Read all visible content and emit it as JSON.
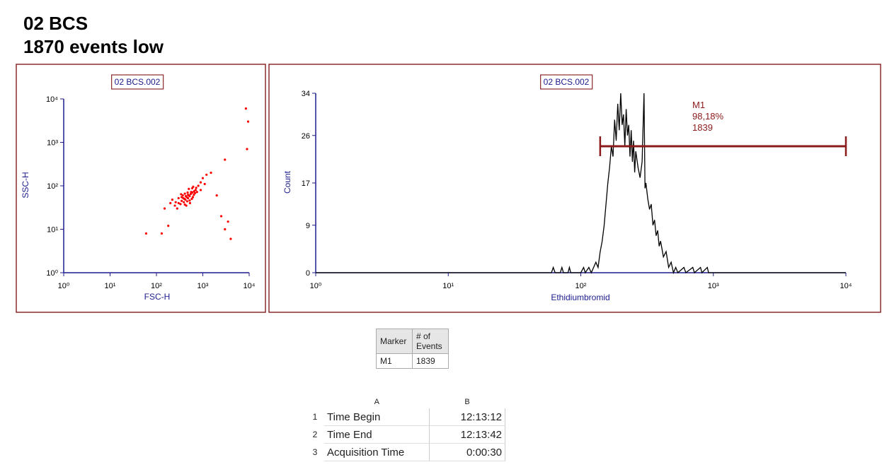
{
  "header": {
    "title": "02 BCS",
    "subtitle": "1870 events low"
  },
  "chart_data": [
    {
      "type": "scatter",
      "title": "02 BCS.002",
      "x_label": "FSC-H",
      "y_label": "SSC-H",
      "x": [
        450,
        500,
        400,
        350,
        600,
        550,
        300,
        700,
        420,
        480,
        380,
        520,
        650,
        330,
        460,
        560,
        410,
        390,
        610,
        720,
        800,
        250,
        280,
        900,
        1000,
        1200,
        440,
        500,
        370,
        640,
        580,
        430,
        470,
        520,
        350,
        300,
        680,
        750,
        260,
        200,
        900,
        1100,
        1500,
        220,
        480,
        530,
        410,
        590,
        620,
        340,
        60,
        130,
        180,
        2500,
        3000,
        4000,
        3500,
        9000,
        9500,
        8500,
        3000,
        150,
        2000
      ],
      "y": [
        55,
        60,
        50,
        45,
        70,
        65,
        40,
        80,
        48,
        62,
        52,
        58,
        75,
        38,
        44,
        72,
        66,
        42,
        55,
        90,
        100,
        35,
        30,
        120,
        150,
        180,
        35,
        85,
        60,
        62,
        50,
        58,
        70,
        46,
        55,
        52,
        68,
        72,
        42,
        40,
        80,
        110,
        200,
        48,
        52,
        40,
        37,
        88,
        95,
        64,
        8,
        8,
        12,
        20,
        10,
        6,
        15,
        700,
        3000,
        6000,
        400,
        30,
        60
      ],
      "color": "#ff0000",
      "log_x": true,
      "log_y": true,
      "xlim": [
        1,
        10000
      ],
      "ylim": [
        1,
        10000
      ],
      "xticks": [
        {
          "value": 1,
          "label": "10⁰"
        },
        {
          "value": 10,
          "label": "10¹"
        },
        {
          "value": 100,
          "label": "10²"
        },
        {
          "value": 1000,
          "label": "10³"
        },
        {
          "value": 10000,
          "label": "10⁴"
        }
      ],
      "yticks": [
        {
          "value": 1,
          "label": "10⁰"
        },
        {
          "value": 10,
          "label": "10¹"
        },
        {
          "value": 100,
          "label": "10²"
        },
        {
          "value": 1000,
          "label": "10³"
        },
        {
          "value": 10000,
          "label": "10⁴"
        }
      ]
    },
    {
      "type": "line",
      "title": "02 BCS.002",
      "x_label": "Ethidiumbromid",
      "y_label": "Count",
      "x": [
        1,
        60,
        62,
        64,
        70,
        72,
        74,
        80,
        82,
        84,
        100,
        105,
        108,
        115,
        120,
        125,
        130,
        135,
        140,
        145,
        150,
        155,
        160,
        165,
        170,
        175,
        180,
        185,
        190,
        195,
        200,
        205,
        210,
        215,
        220,
        225,
        230,
        235,
        240,
        245,
        250,
        255,
        260,
        270,
        280,
        290,
        300,
        305,
        310,
        320,
        330,
        340,
        350,
        360,
        370,
        380,
        390,
        400,
        420,
        440,
        460,
        480,
        500,
        520,
        540,
        600,
        620,
        700,
        720,
        800,
        820,
        900,
        920,
        10000
      ],
      "values": [
        0,
        0,
        1,
        0,
        0,
        1,
        0,
        0,
        1,
        0,
        0,
        1,
        0,
        1,
        0,
        1,
        2,
        1,
        4,
        6,
        9,
        13,
        17,
        20,
        24,
        22,
        29,
        25,
        32,
        27,
        34,
        28,
        30,
        24,
        31,
        26,
        28,
        22,
        27,
        21,
        25,
        19,
        23,
        20,
        18,
        21,
        34,
        16,
        17,
        14,
        12,
        13,
        9,
        10,
        7,
        8,
        5,
        6,
        3,
        4,
        1,
        2,
        0,
        1,
        0,
        1,
        0,
        1,
        0,
        1,
        0,
        1,
        0,
        0
      ],
      "color": "#000000",
      "log_x": true,
      "xlim": [
        1,
        10000
      ],
      "ylim": [
        0,
        34
      ],
      "xticks": [
        {
          "value": 1,
          "label": "10⁰"
        },
        {
          "value": 10,
          "label": "10¹"
        },
        {
          "value": 100,
          "label": "10²"
        },
        {
          "value": 1000,
          "label": "10³"
        },
        {
          "value": 10000,
          "label": "10⁴"
        }
      ],
      "yticks": [
        0,
        9,
        17,
        26,
        34
      ],
      "marker": {
        "label": "M1",
        "range": [
          140,
          10000
        ],
        "percent": "98,18%",
        "events": 1839,
        "color": "#8b1a1a"
      }
    }
  ],
  "stats_table": {
    "columns": [
      "Marker",
      "# of Events"
    ],
    "rows": [
      [
        "M1",
        1839
      ]
    ]
  },
  "sheet": {
    "columns": [
      "A",
      "B"
    ],
    "rows": [
      {
        "number": 1,
        "cells": [
          "Time Begin",
          "12:13:12"
        ]
      },
      {
        "number": 2,
        "cells": [
          "Time End",
          "12:13:42"
        ]
      },
      {
        "number": 3,
        "cells": [
          "Acquisition Time",
          "0:00:30"
        ]
      }
    ]
  }
}
